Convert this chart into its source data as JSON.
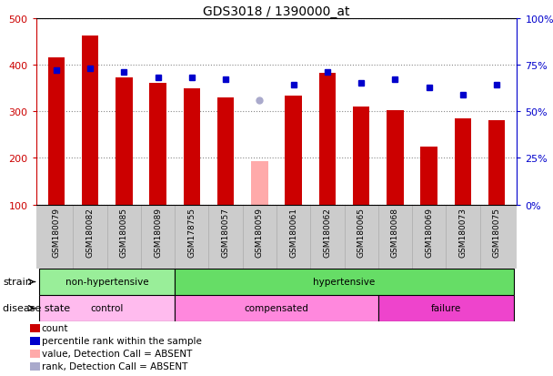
{
  "title": "GDS3018 / 1390000_at",
  "samples": [
    "GSM180079",
    "GSM180082",
    "GSM180085",
    "GSM180089",
    "GSM178755",
    "GSM180057",
    "GSM180059",
    "GSM180061",
    "GSM180062",
    "GSM180065",
    "GSM180068",
    "GSM180069",
    "GSM180073",
    "GSM180075"
  ],
  "count_values": [
    415,
    462,
    373,
    360,
    350,
    330,
    193,
    333,
    383,
    310,
    303,
    225,
    285,
    280
  ],
  "count_absent": [
    false,
    false,
    false,
    false,
    false,
    false,
    true,
    false,
    false,
    false,
    false,
    false,
    false,
    false
  ],
  "percentile_values": [
    72,
    73,
    71,
    68,
    68,
    67,
    56,
    64,
    71,
    65,
    67,
    63,
    59,
    64
  ],
  "percentile_absent": [
    false,
    false,
    false,
    false,
    false,
    false,
    true,
    false,
    false,
    false,
    false,
    false,
    false,
    false
  ],
  "ylim_left": [
    100,
    500
  ],
  "ylim_right": [
    0,
    100
  ],
  "yticks_left": [
    100,
    200,
    300,
    400,
    500
  ],
  "yticks_right": [
    0,
    25,
    50,
    75,
    100
  ],
  "bar_color_normal": "#cc0000",
  "bar_color_absent": "#ffaaaa",
  "dot_color_normal": "#0000cc",
  "dot_color_absent": "#aaaacc",
  "axis_left_color": "#cc0000",
  "axis_right_color": "#0000cc",
  "tick_area_color": "#cccccc",
  "strain_nh_color": "#99ee99",
  "strain_h_color": "#66dd66",
  "disease_ctrl_color": "#ffbbee",
  "disease_comp_color": "#ff88dd",
  "disease_fail_color": "#ee44cc",
  "strain_divider": 4,
  "disease_dividers": [
    4,
    10
  ],
  "legend_items": [
    {
      "color": "#cc0000",
      "label": "count"
    },
    {
      "color": "#0000cc",
      "label": "percentile rank within the sample"
    },
    {
      "color": "#ffaaaa",
      "label": "value, Detection Call = ABSENT"
    },
    {
      "color": "#aaaacc",
      "label": "rank, Detection Call = ABSENT"
    }
  ]
}
